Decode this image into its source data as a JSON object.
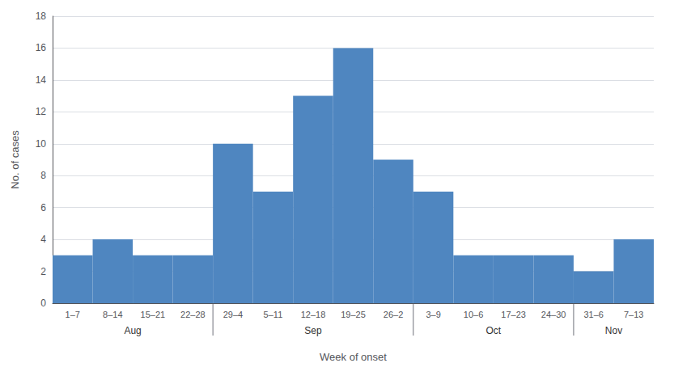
{
  "chart_data": {
    "type": "bar",
    "categories": [
      "1–7",
      "8–14",
      "15–21",
      "22–28",
      "29–4",
      "5–11",
      "12–18",
      "19–25",
      "26–2",
      "3–9",
      "10–6",
      "17–23",
      "24–30",
      "31–6",
      "7–13"
    ],
    "values": [
      3,
      4,
      3,
      3,
      10,
      7,
      13,
      16,
      9,
      7,
      3,
      3,
      3,
      2,
      4
    ],
    "color": "#4f86c0",
    "xlabel": "Week of onset",
    "ylabel": "No. of cases",
    "ylim": [
      0,
      18
    ],
    "yticks": [
      0,
      2,
      4,
      6,
      8,
      10,
      12,
      14,
      16,
      18
    ],
    "annotations": [
      "Aug",
      "Sep",
      "Oct",
      "Nov"
    ]
  }
}
